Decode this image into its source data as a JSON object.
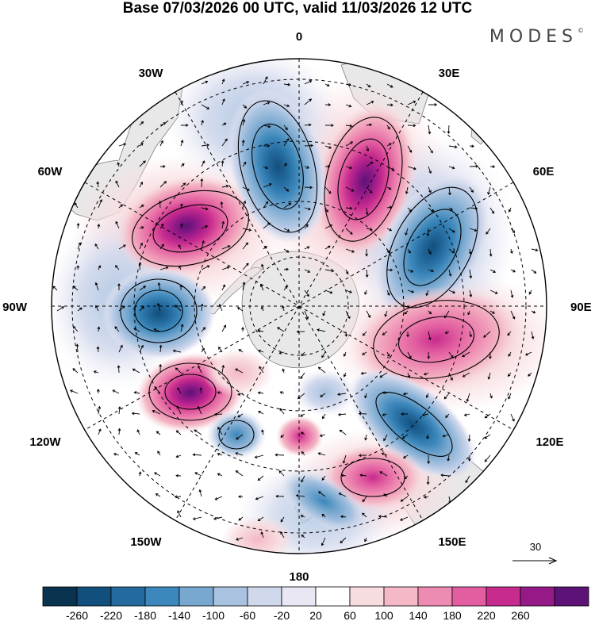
{
  "title": "Base 07/03/2026 00 UTC, valid 11/03/2026 12 UTC",
  "brand": {
    "name": "MODES",
    "mark": "©"
  },
  "longitude_labels": {
    "lon_0": "0",
    "lon_30e": "30E",
    "lon_60e": "60E",
    "lon_90e": "90E",
    "lon_120e": "120E",
    "lon_150e": "150E",
    "lon_180": "180",
    "lon_150w": "150W",
    "lon_120w": "120W",
    "lon_90w": "90W",
    "lon_60w": "60W",
    "lon_30w": "30W"
  },
  "vector_scale": {
    "label": "30"
  },
  "colorbar": {
    "colors": [
      "#0a3350",
      "#134f7c",
      "#236a9e",
      "#3c87bb",
      "#78a8cf",
      "#a8c2e0",
      "#d0d8ec",
      "#e9e7f3",
      "#ffffff",
      "#f8dde0",
      "#f4b8c6",
      "#ee8bb2",
      "#e25ea0",
      "#c72b8e",
      "#951a88",
      "#5c1276"
    ],
    "labels": [
      "-260",
      "-220",
      "-180",
      "-140",
      "-100",
      "-60",
      "-20",
      "20",
      "60",
      "100",
      "140",
      "180",
      "220",
      "260"
    ]
  },
  "colors": {
    "land": "#e8e8e8",
    "coast": "#7a7a7a",
    "grid": "#000000"
  }
}
